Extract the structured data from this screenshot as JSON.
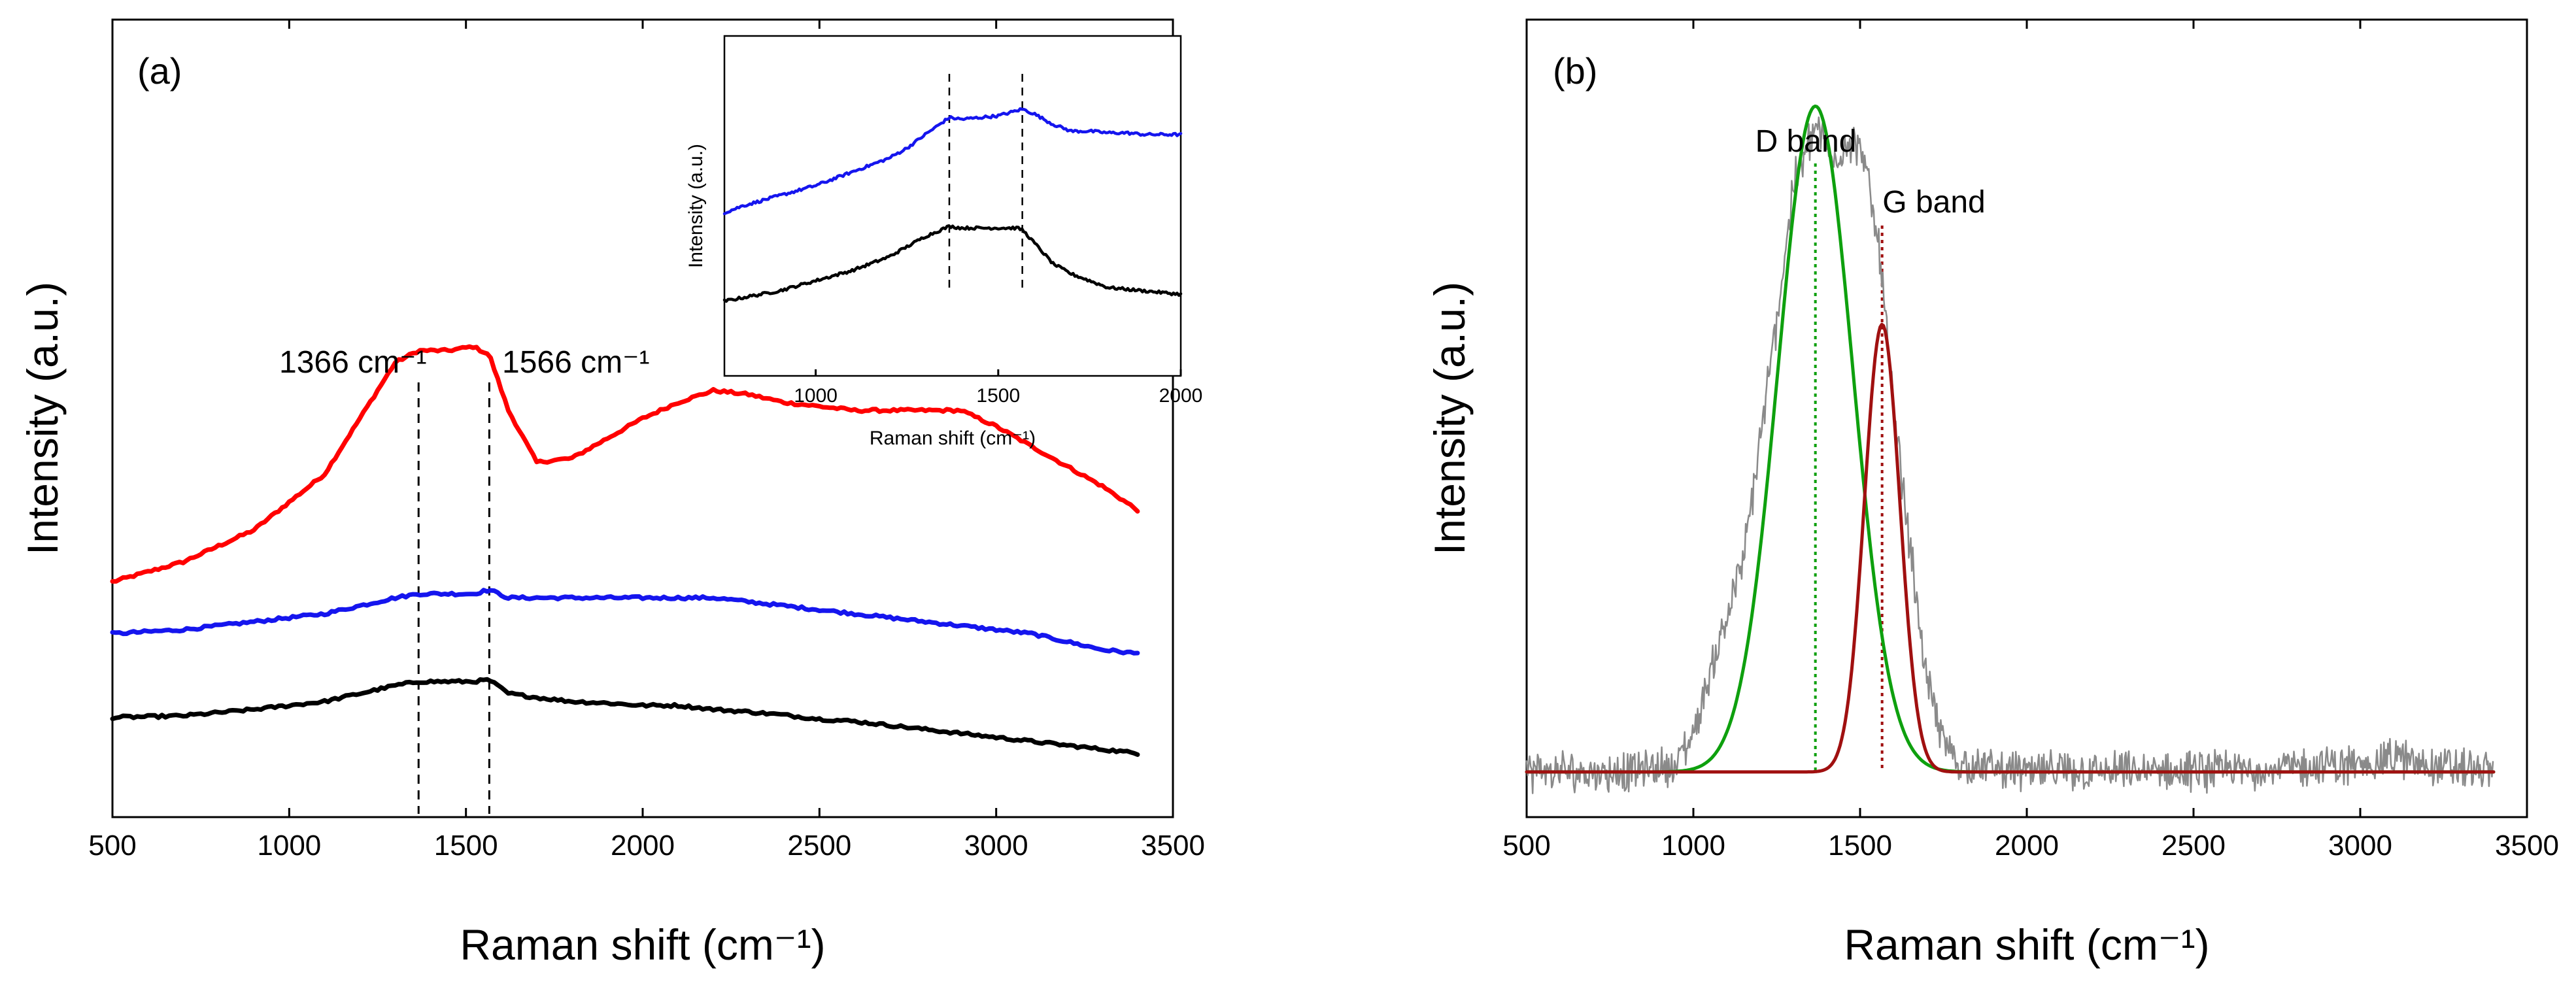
{
  "colors": {
    "red": "#ff0000",
    "blue": "#1515ee",
    "black": "#000000",
    "gray": "#8a8a8a",
    "green": "#0ea00e",
    "darkred": "#a01010"
  },
  "chart_data": [
    {
      "panel": "(a)",
      "type": "line",
      "xlabel": "Raman shift (cm⁻¹)",
      "ylabel": "Intensity (a.u.)",
      "xlim": [
        500,
        3500
      ],
      "xticks": [
        "500",
        "1000",
        "1500",
        "2000",
        "2500",
        "3000",
        "3500"
      ],
      "ylim": [
        0,
        100
      ],
      "ticks_y": false,
      "annotations": [
        {
          "text": "1366 cm⁻¹",
          "x": 1366,
          "line": "dashed"
        },
        {
          "text": "1566 cm⁻¹",
          "x": 1566,
          "line": "dashed"
        }
      ],
      "x": [
        500,
        700,
        900,
        1100,
        1200,
        1300,
        1366,
        1450,
        1520,
        1566,
        1620,
        1700,
        1800,
        1900,
        2000,
        2100,
        2200,
        2300,
        2400,
        2500,
        2600,
        2700,
        2800,
        2900,
        3000,
        3100,
        3200,
        3300,
        3400
      ],
      "series": [
        {
          "name": "red",
          "color": "#ff0000",
          "values": [
            29.5,
            32,
            36,
            43,
            50,
            57,
            58.5,
            58.5,
            59,
            58,
            51,
            44.5,
            45,
            47.5,
            50,
            52,
            53.5,
            53,
            52,
            51.5,
            51,
            51,
            51,
            51,
            49,
            46.5,
            44,
            41.5,
            38.5
          ]
        },
        {
          "name": "blue",
          "color": "#1515ee",
          "values": [
            23,
            23.5,
            24.5,
            25.5,
            26.5,
            27.5,
            28,
            28,
            28,
            28.5,
            27.5,
            27.5,
            27.5,
            27.5,
            27.5,
            27.5,
            27.5,
            27,
            26.5,
            26,
            25.5,
            25,
            24.5,
            24,
            23.5,
            23,
            22,
            21,
            20.5
          ]
        },
        {
          "name": "black",
          "color": "#000000",
          "values": [
            12.5,
            12.7,
            13.5,
            14.5,
            15.5,
            16.5,
            17,
            17,
            17,
            17.2,
            15.5,
            15,
            14.5,
            14.3,
            14,
            14,
            13.5,
            13.2,
            12.8,
            12.3,
            12,
            11.5,
            11,
            10.5,
            10,
            9.5,
            9,
            8.5,
            8
          ]
        }
      ],
      "inset": {
        "xlabel": "Raman shift (cm⁻¹)",
        "ylabel": "Intensity (a.u.)",
        "xlim": [
          750,
          2000
        ],
        "xticks": [
          "1000",
          "1500",
          "2000"
        ],
        "vlines": [
          1366,
          1566
        ],
        "x": [
          750,
          800,
          900,
          1000,
          1100,
          1200,
          1250,
          1300,
          1366,
          1400,
          1450,
          1500,
          1550,
          1566,
          1600,
          1650,
          1700,
          1750,
          1800,
          1850,
          1900,
          1950,
          2000
        ],
        "series": [
          {
            "name": "blue",
            "color": "#1515ee",
            "values": [
              48,
              50,
              53,
              56,
              60,
              64,
              67,
              71,
              76,
              75.5,
              76,
              76.5,
              78,
              78.5,
              77,
              74,
              72,
              72,
              71.5,
              71.5,
              71,
              71,
              71
            ]
          },
          {
            "name": "black",
            "color": "#000000",
            "values": [
              22,
              23,
              25,
              28,
              31,
              35,
              38,
              41,
              44,
              43.5,
              43.5,
              43.5,
              43.5,
              43,
              39,
              33,
              30,
              28,
              26,
              25.5,
              25,
              24.5,
              24
            ]
          }
        ]
      }
    },
    {
      "panel": "(b)",
      "type": "line",
      "xlabel": "Raman shift (cm⁻¹)",
      "ylabel": "Intensity (a.u.)",
      "xlim": [
        500,
        3500
      ],
      "xticks": [
        "500",
        "1000",
        "1500",
        "2000",
        "2500",
        "3000",
        "3500"
      ],
      "ylim": [
        0,
        100
      ],
      "ticks_y": false,
      "annotations": [
        {
          "text": "D band",
          "x": 1366,
          "line": "dotted",
          "color": "#0ea00e"
        },
        {
          "text": "G band",
          "x": 1566,
          "line": "dotted",
          "color": "#a01010"
        }
      ],
      "x": [
        500,
        800,
        950,
        1000,
        1050,
        1100,
        1150,
        1200,
        1250,
        1300,
        1366,
        1420,
        1460,
        1500,
        1530,
        1560,
        1600,
        1650,
        1700,
        1750,
        1800,
        2000,
        2500,
        3000,
        3100,
        3200,
        3400
      ],
      "series": [
        {
          "name": "measured spectrum",
          "color": "#8a8a8a",
          "noisy": true,
          "values": [
            0,
            0,
            1,
            5,
            13,
            21,
            28,
            44,
            60,
            78,
            86,
            81,
            84,
            83,
            77,
            69,
            48,
            30,
            12,
            4,
            1,
            0,
            0,
            1,
            2,
            1,
            0
          ]
        },
        {
          "name": "D band fit",
          "color": "#0ea00e",
          "center": 1366,
          "sigma": 112,
          "amplitude": 88.5,
          "baseline": 0
        },
        {
          "name": "G band fit",
          "color": "#a01010",
          "center": 1566,
          "sigma": 53,
          "amplitude": 59.5,
          "baseline": 0
        }
      ]
    }
  ]
}
